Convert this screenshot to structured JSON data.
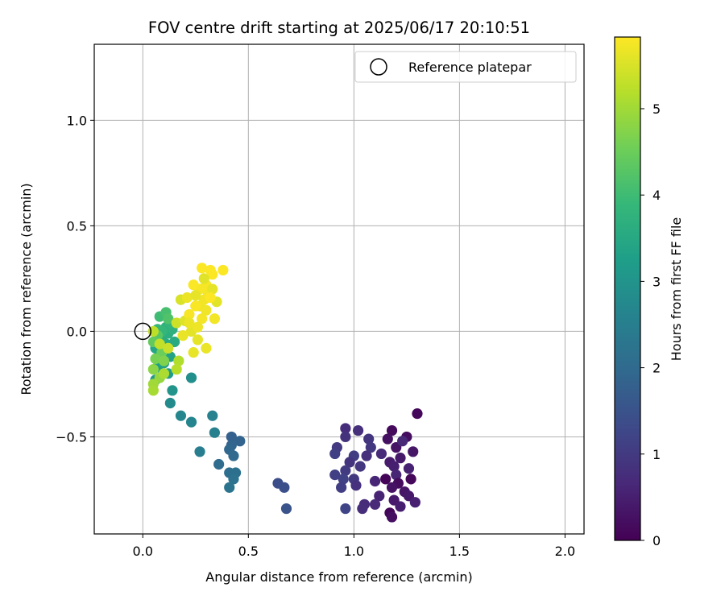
{
  "chart_data": {
    "type": "scatter",
    "title": "FOV centre drift starting at 2025/06/17 20:10:51",
    "xlabel": "Angular distance from reference (arcmin)",
    "ylabel": "Rotation from reference (arcmin)",
    "xlim": [
      -0.23,
      2.09
    ],
    "ylim": [
      -0.96,
      1.36
    ],
    "xticks": [
      0.0,
      0.5,
      1.0,
      1.5,
      2.0
    ],
    "xtick_labels": [
      "0.0",
      "0.5",
      "1.0",
      "1.5",
      "2.0"
    ],
    "yticks": [
      1.0,
      0.5,
      0.0,
      -0.5
    ],
    "ytick_labels": [
      "1.0",
      "0.5",
      "0.0",
      "−0.5"
    ],
    "grid": true,
    "legend": {
      "placement": "top-right",
      "entries": [
        {
          "label": "Reference platepar",
          "marker": "hollow-circle"
        }
      ]
    },
    "reference_point": {
      "x": 0.0,
      "y": 0.0
    },
    "colorbar": {
      "label": "Hours from first FF file",
      "colormap": "viridis",
      "range": [
        0,
        5.83
      ],
      "ticks": [
        0,
        1,
        2,
        3,
        4,
        5
      ],
      "tick_labels": [
        "0",
        "1",
        "2",
        "3",
        "4",
        "5"
      ]
    },
    "colormap_stops": [
      "#440154",
      "#482878",
      "#3e4989",
      "#31688e",
      "#26828e",
      "#1f9e89",
      "#35b779",
      "#6ece58",
      "#b5de2b",
      "#fde725"
    ],
    "points": [
      [
        1.3,
        -0.39,
        0.1
      ],
      [
        1.18,
        -0.47,
        0.15
      ],
      [
        1.25,
        -0.5,
        0.2
      ],
      [
        1.16,
        -0.51,
        0.25
      ],
      [
        1.2,
        -0.55,
        0.3
      ],
      [
        1.28,
        -0.57,
        0.35
      ],
      [
        1.22,
        -0.6,
        0.4
      ],
      [
        1.17,
        -0.62,
        0.45
      ],
      [
        1.19,
        -0.64,
        0.5
      ],
      [
        1.26,
        -0.65,
        0.55
      ],
      [
        1.2,
        -0.68,
        0.6
      ],
      [
        1.15,
        -0.7,
        0.05
      ],
      [
        1.27,
        -0.7,
        0.12
      ],
      [
        1.21,
        -0.72,
        0.18
      ],
      [
        1.18,
        -0.74,
        0.28
      ],
      [
        1.24,
        -0.76,
        0.33
      ],
      [
        1.26,
        -0.78,
        0.38
      ],
      [
        1.19,
        -0.8,
        0.42
      ],
      [
        1.22,
        -0.83,
        0.48
      ],
      [
        1.29,
        -0.81,
        0.52
      ],
      [
        1.17,
        -0.86,
        0.08
      ],
      [
        1.18,
        -0.88,
        0.22
      ],
      [
        1.12,
        -0.78,
        0.58
      ],
      [
        1.1,
        -0.71,
        0.62
      ],
      [
        1.23,
        -0.52,
        0.66
      ],
      [
        1.13,
        -0.58,
        0.7
      ],
      [
        0.96,
        -0.46,
        0.75
      ],
      [
        1.02,
        -0.47,
        0.8
      ],
      [
        0.96,
        -0.5,
        0.85
      ],
      [
        1.07,
        -0.51,
        0.9
      ],
      [
        1.08,
        -0.55,
        0.95
      ],
      [
        0.92,
        -0.55,
        1.0
      ],
      [
        1.0,
        -0.59,
        1.05
      ],
      [
        1.06,
        -0.59,
        0.78
      ],
      [
        0.91,
        -0.58,
        1.1
      ],
      [
        0.98,
        -0.62,
        0.88
      ],
      [
        1.03,
        -0.64,
        0.92
      ],
      [
        0.96,
        -0.66,
        1.02
      ],
      [
        0.91,
        -0.68,
        1.12
      ],
      [
        1.0,
        -0.7,
        0.98
      ],
      [
        0.95,
        -0.7,
        1.15
      ],
      [
        1.01,
        -0.73,
        0.82
      ],
      [
        0.94,
        -0.74,
        1.08
      ],
      [
        1.05,
        -0.82,
        0.72
      ],
      [
        1.04,
        -0.84,
        0.76
      ],
      [
        1.1,
        -0.82,
        0.68
      ],
      [
        0.96,
        -0.84,
        1.2
      ],
      [
        0.64,
        -0.72,
        1.4
      ],
      [
        0.67,
        -0.74,
        1.45
      ],
      [
        0.68,
        -0.84,
        1.5
      ],
      [
        0.42,
        -0.5,
        1.8
      ],
      [
        0.46,
        -0.52,
        1.85
      ],
      [
        0.42,
        -0.54,
        1.9
      ],
      [
        0.41,
        -0.56,
        1.95
      ],
      [
        0.43,
        -0.59,
        2.0
      ],
      [
        0.36,
        -0.63,
        2.05
      ],
      [
        0.41,
        -0.67,
        2.1
      ],
      [
        0.44,
        -0.67,
        2.15
      ],
      [
        0.43,
        -0.7,
        2.2
      ],
      [
        0.41,
        -0.74,
        2.25
      ],
      [
        0.27,
        -0.57,
        2.5
      ],
      [
        0.33,
        -0.4,
        2.6
      ],
      [
        0.34,
        -0.48,
        2.55
      ],
      [
        0.18,
        -0.4,
        2.7
      ],
      [
        0.23,
        -0.43,
        2.65
      ],
      [
        0.13,
        -0.34,
        2.8
      ],
      [
        0.23,
        -0.22,
        2.9
      ],
      [
        0.14,
        -0.28,
        3.0
      ],
      [
        0.06,
        -0.23,
        3.1
      ],
      [
        0.1,
        -0.2,
        3.15
      ],
      [
        0.12,
        -0.2,
        3.2
      ],
      [
        0.07,
        -0.17,
        3.25
      ],
      [
        0.1,
        -0.15,
        3.3
      ],
      [
        0.13,
        -0.12,
        3.35
      ],
      [
        0.08,
        -0.1,
        3.4
      ],
      [
        0.06,
        -0.08,
        3.45
      ],
      [
        0.11,
        -0.06,
        3.5
      ],
      [
        0.15,
        -0.05,
        3.55
      ],
      [
        0.09,
        -0.03,
        3.6
      ],
      [
        0.12,
        -0.01,
        3.65
      ],
      [
        0.14,
        0.01,
        3.7
      ],
      [
        0.11,
        0.02,
        3.75
      ],
      [
        0.13,
        0.04,
        3.8
      ],
      [
        0.09,
        0.0,
        3.85
      ],
      [
        0.07,
        0.01,
        3.9
      ],
      [
        0.08,
        0.07,
        4.0
      ],
      [
        0.11,
        0.09,
        4.1
      ],
      [
        0.12,
        0.06,
        4.2
      ],
      [
        0.07,
        -0.02,
        4.3
      ],
      [
        0.05,
        -0.05,
        4.4
      ],
      [
        0.09,
        -0.1,
        4.5
      ],
      [
        0.06,
        -0.13,
        4.6
      ],
      [
        0.1,
        -0.14,
        4.7
      ],
      [
        0.05,
        -0.18,
        4.8
      ],
      [
        0.08,
        -0.22,
        4.9
      ],
      [
        0.05,
        -0.25,
        5.0
      ],
      [
        0.05,
        -0.28,
        5.05
      ],
      [
        0.1,
        -0.2,
        5.1
      ],
      [
        0.17,
        -0.14,
        5.15
      ],
      [
        0.16,
        -0.18,
        5.2
      ],
      [
        0.05,
        0.0,
        5.25
      ],
      [
        0.08,
        -0.06,
        5.3
      ],
      [
        0.12,
        -0.08,
        5.35
      ],
      [
        0.16,
        0.04,
        5.4
      ],
      [
        0.2,
        0.05,
        5.45
      ],
      [
        0.18,
        0.15,
        5.5
      ],
      [
        0.2,
        0.05,
        5.55
      ],
      [
        0.23,
        0.0,
        5.6
      ],
      [
        0.26,
        -0.04,
        5.62
      ],
      [
        0.24,
        -0.1,
        5.64
      ],
      [
        0.3,
        -0.08,
        5.66
      ],
      [
        0.21,
        0.16,
        5.68
      ],
      [
        0.27,
        0.12,
        5.7
      ],
      [
        0.29,
        0.15,
        5.72
      ],
      [
        0.31,
        0.18,
        5.74
      ],
      [
        0.27,
        0.2,
        5.76
      ],
      [
        0.3,
        0.22,
        5.78
      ],
      [
        0.24,
        0.22,
        5.8
      ],
      [
        0.28,
        0.3,
        5.82
      ],
      [
        0.33,
        0.27,
        5.82
      ],
      [
        0.38,
        0.29,
        5.82
      ],
      [
        0.32,
        0.29,
        5.81
      ],
      [
        0.25,
        0.12,
        5.79
      ],
      [
        0.22,
        0.08,
        5.77
      ],
      [
        0.28,
        0.06,
        5.75
      ],
      [
        0.34,
        0.06,
        5.73
      ],
      [
        0.3,
        0.1,
        5.71
      ],
      [
        0.26,
        0.02,
        5.69
      ],
      [
        0.22,
        0.04,
        5.67
      ],
      [
        0.19,
        -0.02,
        5.65
      ],
      [
        0.25,
        0.17,
        5.63
      ],
      [
        0.33,
        0.2,
        5.61
      ],
      [
        0.35,
        0.14,
        5.59
      ],
      [
        0.29,
        0.25,
        5.57
      ],
      [
        0.32,
        0.16,
        5.83
      ]
    ]
  }
}
